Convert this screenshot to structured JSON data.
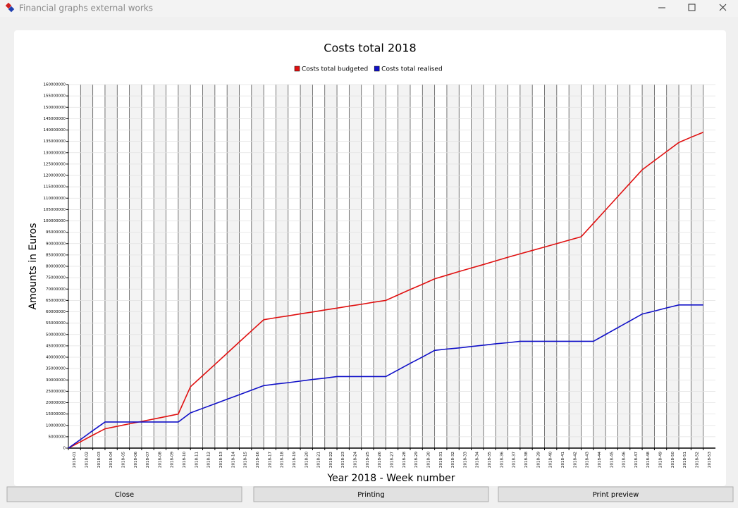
{
  "window": {
    "title": "Financial graphs external works",
    "buttons": [
      "Close",
      "Printing",
      "Print preview"
    ]
  },
  "chart_data": {
    "type": "line",
    "title": "Costs total 2018",
    "x_label": "Year 2018 - Week number",
    "y_label": "Amounts in Euros",
    "legend": "top",
    "grid": true,
    "categories": [
      "2018-01",
      "2018-02",
      "2018-03",
      "2018-04",
      "2018-05",
      "2018-06",
      "2018-07",
      "2018-08",
      "2018-09",
      "2018-10",
      "2018-11",
      "2018-12",
      "2018-13",
      "2018-14",
      "2018-15",
      "2018-16",
      "2018-17",
      "2018-18",
      "2018-19",
      "2018-20",
      "2018-21",
      "2018-22",
      "2018-23",
      "2018-24",
      "2018-25",
      "2018-26",
      "2018-27",
      "2018-28",
      "2018-29",
      "2018-30",
      "2018-31",
      "2018-32",
      "2018-33",
      "2018-34",
      "2018-35",
      "2018-36",
      "2018-37",
      "2018-38",
      "2018-39",
      "2018-40",
      "2018-41",
      "2018-42",
      "2018-43",
      "2018-44",
      "2018-45",
      "2018-46",
      "2018-47",
      "2018-48",
      "2018-49",
      "2018-50",
      "2018-51",
      "2018-52",
      "2018-53"
    ],
    "series": [
      {
        "name": "Costs total budgeted",
        "color": "#e01010",
        "values": [
          0,
          2800000,
          5700000,
          8500000,
          9600000,
          10700000,
          11750000,
          12800000,
          13900000,
          15000000,
          27000000,
          31900000,
          36800000,
          41750000,
          46700000,
          51600000,
          56500000,
          57400000,
          58200000,
          59100000,
          59900000,
          60800000,
          61600000,
          62500000,
          63300000,
          64200000,
          65000000,
          67400000,
          69800000,
          72100000,
          74500000,
          76100000,
          77700000,
          79250000,
          80800000,
          82400000,
          84000000,
          85500000,
          87000000,
          88500000,
          90000000,
          91500000,
          93000000,
          98900000,
          104800000,
          110700000,
          116600000,
          122500000,
          126500000,
          130500000,
          134500000,
          136800000,
          139000000
        ]
      },
      {
        "name": "Costs total realised",
        "color": "#1010c8",
        "values": [
          0,
          3800000,
          7700000,
          11500000,
          11500000,
          11500000,
          11500000,
          11500000,
          11500000,
          11500000,
          15500000,
          17500000,
          19500000,
          21500000,
          23500000,
          25500000,
          27500000,
          28200000,
          28800000,
          29500000,
          30200000,
          30800000,
          31500000,
          31500000,
          31500000,
          31500000,
          31500000,
          34400000,
          37300000,
          40100000,
          43000000,
          43600000,
          44100000,
          44700000,
          45300000,
          45900000,
          46400000,
          47000000,
          47000000,
          47000000,
          47000000,
          47000000,
          47000000,
          47000000,
          50000000,
          53000000,
          56000000,
          59000000,
          60300000,
          61700000,
          63000000,
          63000000,
          63000000
        ]
      }
    ],
    "ylim": [
      0,
      160000000
    ],
    "yticks": [
      0,
      5000000,
      10000000,
      15000000,
      20000000,
      25000000,
      30000000,
      35000000,
      40000000,
      45000000,
      50000000,
      55000000,
      60000000,
      65000000,
      70000000,
      75000000,
      80000000,
      85000000,
      90000000,
      95000000,
      100000000,
      105000000,
      110000000,
      115000000,
      120000000,
      125000000,
      130000000,
      135000000,
      140000000,
      145000000,
      150000000,
      155000000,
      160000000
    ]
  }
}
